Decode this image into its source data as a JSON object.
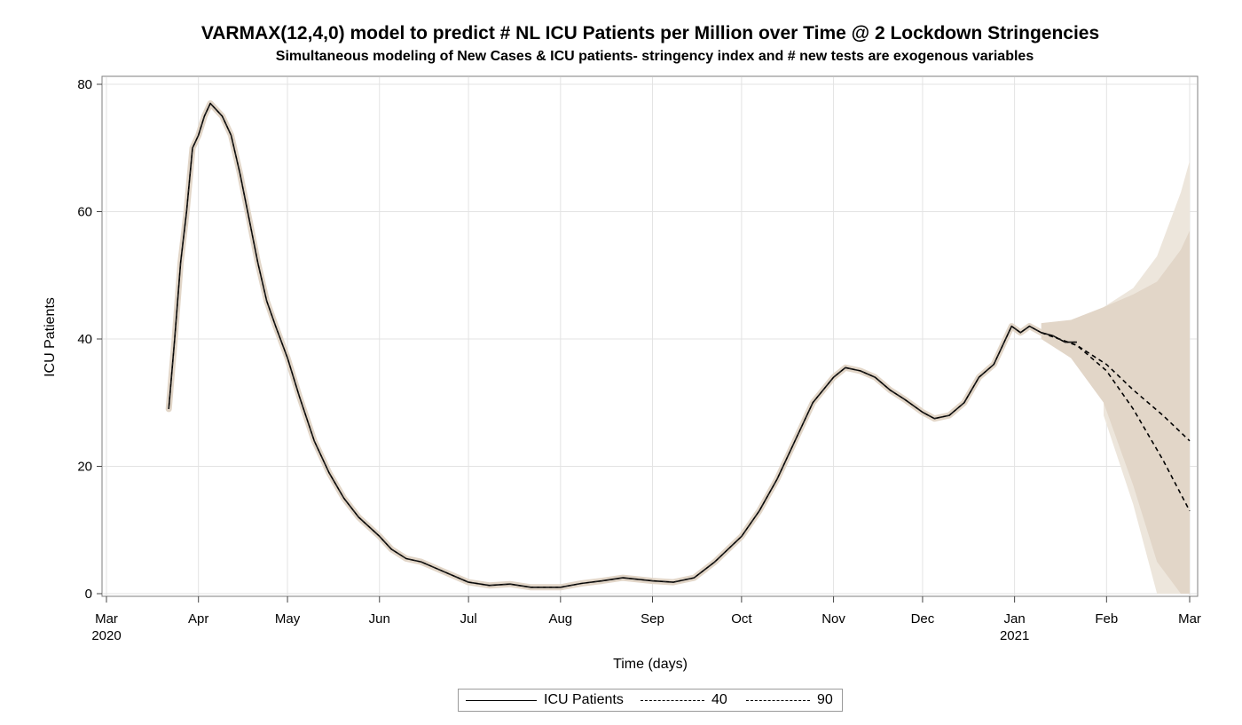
{
  "chart_data": {
    "type": "line",
    "title": "VARMAX(12,4,0) model to predict # NL ICU Patients per Million over Time @ 2 Lockdown Stringencies",
    "subtitle": "Simultaneous modeling of New Cases & ICU patients- stringency index and # new tests are exogenous variables",
    "xlabel": "Time (days)",
    "ylabel": "ICU Patients",
    "xlim": [
      "2020-03-01",
      "2021-03-01"
    ],
    "ylim": [
      0,
      80
    ],
    "y_ticks": [
      0,
      20,
      40,
      60,
      80
    ],
    "x_ticks": [
      {
        "date": "2020-03-01",
        "label": "Mar",
        "year": "2020"
      },
      {
        "date": "2020-04-01",
        "label": "Apr",
        "year": ""
      },
      {
        "date": "2020-05-01",
        "label": "May",
        "year": ""
      },
      {
        "date": "2020-06-01",
        "label": "Jun",
        "year": ""
      },
      {
        "date": "2020-07-01",
        "label": "Jul",
        "year": ""
      },
      {
        "date": "2020-08-01",
        "label": "Aug",
        "year": ""
      },
      {
        "date": "2020-09-01",
        "label": "Sep",
        "year": ""
      },
      {
        "date": "2020-10-01",
        "label": "Oct",
        "year": ""
      },
      {
        "date": "2020-11-01",
        "label": "Nov",
        "year": ""
      },
      {
        "date": "2020-12-01",
        "label": "Dec",
        "year": ""
      },
      {
        "date": "2021-01-01",
        "label": "Jan",
        "year": "2021"
      },
      {
        "date": "2021-02-01",
        "label": "Feb",
        "year": ""
      },
      {
        "date": "2021-03-01",
        "label": "Mar",
        "year": ""
      }
    ],
    "grid": true,
    "legend_position": "bottom",
    "band_color": "#e2d6c8",
    "band_color_light": "#ede6dc",
    "series": [
      {
        "name": "ICU Patients",
        "style": "solid",
        "color": "#000000",
        "points": [
          [
            "2020-03-22",
            29
          ],
          [
            "2020-03-24",
            40
          ],
          [
            "2020-03-26",
            52
          ],
          [
            "2020-03-28",
            60
          ],
          [
            "2020-03-30",
            70
          ],
          [
            "2020-04-01",
            72
          ],
          [
            "2020-04-03",
            75
          ],
          [
            "2020-04-05",
            77
          ],
          [
            "2020-04-07",
            76
          ],
          [
            "2020-04-09",
            75
          ],
          [
            "2020-04-12",
            72
          ],
          [
            "2020-04-15",
            66
          ],
          [
            "2020-04-18",
            59
          ],
          [
            "2020-04-21",
            52
          ],
          [
            "2020-04-24",
            46
          ],
          [
            "2020-04-27",
            42
          ],
          [
            "2020-05-01",
            37
          ],
          [
            "2020-05-05",
            31
          ],
          [
            "2020-05-10",
            24
          ],
          [
            "2020-05-15",
            19
          ],
          [
            "2020-05-20",
            15
          ],
          [
            "2020-05-25",
            12
          ],
          [
            "2020-06-01",
            9
          ],
          [
            "2020-06-05",
            7
          ],
          [
            "2020-06-10",
            5.5
          ],
          [
            "2020-06-15",
            5
          ],
          [
            "2020-06-20",
            4
          ],
          [
            "2020-06-25",
            3
          ],
          [
            "2020-07-01",
            1.8
          ],
          [
            "2020-07-08",
            1.3
          ],
          [
            "2020-07-15",
            1.5
          ],
          [
            "2020-07-22",
            1.0
          ],
          [
            "2020-08-01",
            1.0
          ],
          [
            "2020-08-08",
            1.6
          ],
          [
            "2020-08-15",
            2.0
          ],
          [
            "2020-08-22",
            2.5
          ],
          [
            "2020-09-01",
            2.0
          ],
          [
            "2020-09-08",
            1.8
          ],
          [
            "2020-09-15",
            2.5
          ],
          [
            "2020-09-22",
            5.0
          ],
          [
            "2020-10-01",
            9.0
          ],
          [
            "2020-10-07",
            13
          ],
          [
            "2020-10-13",
            18
          ],
          [
            "2020-10-19",
            24
          ],
          [
            "2020-10-25",
            30
          ],
          [
            "2020-11-01",
            34
          ],
          [
            "2020-11-05",
            35.5
          ],
          [
            "2020-11-10",
            35
          ],
          [
            "2020-11-15",
            34
          ],
          [
            "2020-11-20",
            32
          ],
          [
            "2020-11-25",
            30.5
          ],
          [
            "2020-12-01",
            28.5
          ],
          [
            "2020-12-05",
            27.5
          ],
          [
            "2020-12-10",
            28
          ],
          [
            "2020-12-15",
            30
          ],
          [
            "2020-12-20",
            34
          ],
          [
            "2020-12-25",
            36
          ],
          [
            "2020-12-31",
            42
          ],
          [
            "2021-01-03",
            41
          ],
          [
            "2021-01-06",
            42
          ],
          [
            "2021-01-10",
            41
          ],
          [
            "2021-01-14",
            40.5
          ],
          [
            "2021-01-18",
            39.5
          ],
          [
            "2021-01-22",
            39.5
          ]
        ]
      },
      {
        "name": "40",
        "style": "dash",
        "color": "#000000",
        "points": [
          [
            "2021-01-10",
            41
          ],
          [
            "2021-01-22",
            39
          ],
          [
            "2021-02-01",
            36
          ],
          [
            "2021-02-10",
            32
          ],
          [
            "2021-02-20",
            28
          ],
          [
            "2021-03-01",
            24
          ]
        ]
      },
      {
        "name": "90",
        "style": "dash",
        "color": "#000000",
        "points": [
          [
            "2021-01-10",
            41
          ],
          [
            "2021-01-22",
            39
          ],
          [
            "2021-02-01",
            35
          ],
          [
            "2021-02-10",
            29
          ],
          [
            "2021-02-20",
            21
          ],
          [
            "2021-03-01",
            13
          ]
        ]
      }
    ],
    "confidence_band": {
      "color": "#e2d6c8",
      "upper": [
        [
          "2021-01-10",
          42.5
        ],
        [
          "2021-01-20",
          43
        ],
        [
          "2021-01-31",
          45
        ],
        [
          "2021-02-10",
          47
        ],
        [
          "2021-02-18",
          49
        ],
        [
          "2021-02-26",
          54
        ],
        [
          "2021-03-01",
          57
        ]
      ],
      "lower": [
        [
          "2021-01-10",
          40
        ],
        [
          "2021-01-20",
          37
        ],
        [
          "2021-01-31",
          30
        ],
        [
          "2021-02-10",
          17
        ],
        [
          "2021-02-18",
          5
        ],
        [
          "2021-02-26",
          0
        ],
        [
          "2021-03-01",
          0
        ]
      ]
    },
    "confidence_band_light": {
      "color": "#ede6dc",
      "upper": [
        [
          "2021-01-31",
          45
        ],
        [
          "2021-02-10",
          48
        ],
        [
          "2021-02-18",
          53
        ],
        [
          "2021-02-26",
          63
        ],
        [
          "2021-03-01",
          68
        ]
      ],
      "lower": [
        [
          "2021-01-31",
          28
        ],
        [
          "2021-02-10",
          14
        ],
        [
          "2021-02-18",
          0
        ],
        [
          "2021-02-26",
          0
        ],
        [
          "2021-03-01",
          0
        ]
      ]
    }
  },
  "legend": {
    "items": [
      {
        "label": "ICU Patients",
        "style": "solid"
      },
      {
        "label": "40",
        "style": "dash"
      },
      {
        "label": "90",
        "style": "dash"
      }
    ]
  }
}
